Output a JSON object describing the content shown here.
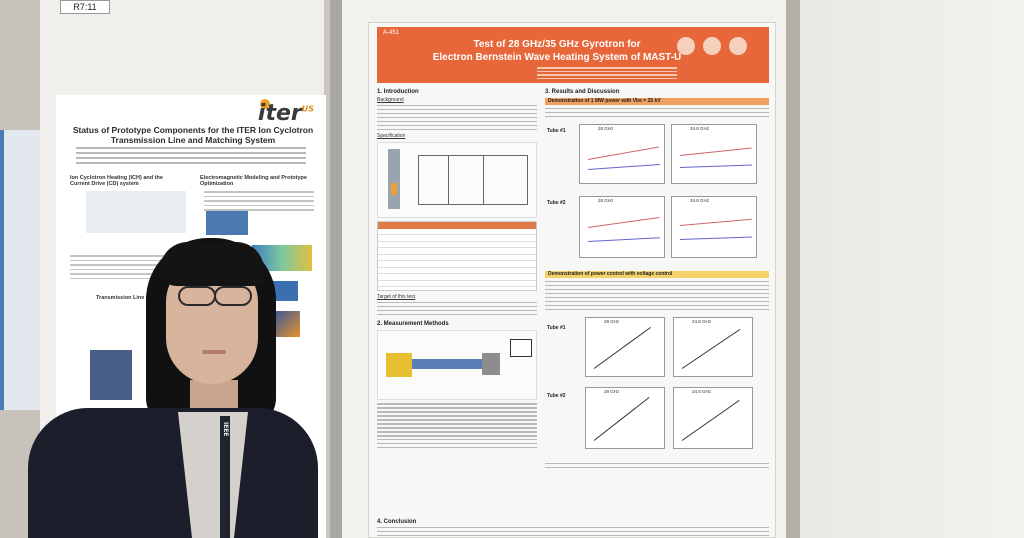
{
  "board_tag": "R7:11",
  "left_poster": {
    "brand": "iter",
    "brand_sup": "US",
    "title": "Status of Prototype Components for the ITER Ion Cyclotron Transmission Line and Matching System",
    "section_1": "Ion Cyclotron Heating (ICH) and the Current Drive (CD) system",
    "section_2": "Electromagnetic Modeling and Prototype Optimization",
    "section_3": "Transmission Line (T)"
  },
  "main_poster": {
    "id": "A-451",
    "title_line1": "Test of 28 GHz/35 GHz Gyrotron for",
    "title_line2": "Electron Bernstein Wave Heating System of MAST-U",
    "sections": {
      "intro": "1. Introduction",
      "background": "Background",
      "specification": "Specification",
      "target": "Target of this test",
      "methods": "2. Measurement Methods",
      "results": "3. Results and Discussion",
      "conclusion": "4. Conclusion"
    },
    "results_bar_1": "Demonstration of 1 MW power with Vbe = 25 kV",
    "results_bar_2": "Demonstration of power control with voltage control",
    "tube_1": "Tube #1",
    "tube_2": "Tube #2",
    "freq_28": "28 GHz",
    "freq_34": "34.8 GHz"
  },
  "lanyard_text": "IEEE"
}
